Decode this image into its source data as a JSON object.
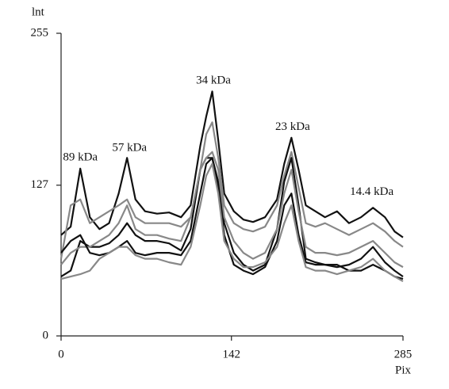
{
  "chart_data": {
    "type": "line",
    "x_label": "Pix",
    "y_label": "lnt",
    "x": [
      0,
      8,
      16,
      24,
      32,
      40,
      48,
      55,
      62,
      70,
      80,
      90,
      100,
      108,
      116,
      121,
      126,
      131,
      136,
      144,
      152,
      160,
      170,
      180,
      186,
      192,
      198,
      204,
      212,
      220,
      230,
      240,
      250,
      260,
      270,
      278,
      285
    ],
    "series": [
      {
        "color": "#111111",
        "values": [
          85,
          92,
          141,
          100,
          90,
          95,
          120,
          150,
          115,
          105,
          103,
          104,
          100,
          110,
          160,
          185,
          206,
          165,
          120,
          105,
          98,
          96,
          100,
          115,
          145,
          167,
          140,
          110,
          105,
          100,
          105,
          95,
          100,
          108,
          100,
          88,
          83
        ]
      },
      {
        "color": "#888888",
        "values": [
          65,
          110,
          115,
          95,
          100,
          105,
          110,
          115,
          100,
          95,
          95,
          95,
          92,
          100,
          140,
          170,
          180,
          150,
          110,
          95,
          90,
          88,
          92,
          110,
          135,
          155,
          125,
          95,
          92,
          95,
          90,
          85,
          90,
          95,
          88,
          80,
          75
        ]
      },
      {
        "color": "#111111",
        "values": [
          50,
          55,
          80,
          75,
          75,
          78,
          85,
          95,
          85,
          80,
          80,
          78,
          72,
          90,
          140,
          150,
          150,
          130,
          95,
          70,
          60,
          55,
          60,
          90,
          130,
          150,
          110,
          65,
          62,
          60,
          60,
          55,
          55,
          60,
          55,
          50,
          48
        ]
      },
      {
        "color": "#888888",
        "values": [
          60,
          70,
          75,
          75,
          80,
          85,
          95,
          110,
          90,
          85,
          85,
          82,
          80,
          100,
          140,
          150,
          155,
          140,
          100,
          80,
          70,
          65,
          70,
          90,
          120,
          140,
          105,
          75,
          70,
          70,
          68,
          70,
          75,
          80,
          70,
          62,
          58
        ]
      },
      {
        "color": "#111111",
        "values": [
          70,
          80,
          85,
          70,
          68,
          70,
          75,
          80,
          70,
          68,
          70,
          70,
          68,
          80,
          120,
          145,
          150,
          125,
          85,
          60,
          55,
          52,
          58,
          80,
          110,
          120,
          85,
          62,
          60,
          60,
          58,
          60,
          65,
          75,
          62,
          55,
          50
        ]
      },
      {
        "color": "#888888",
        "values": [
          48,
          50,
          52,
          55,
          65,
          70,
          75,
          75,
          68,
          65,
          65,
          62,
          60,
          75,
          110,
          135,
          145,
          120,
          80,
          65,
          58,
          58,
          62,
          75,
          95,
          110,
          80,
          58,
          55,
          55,
          52,
          55,
          58,
          65,
          55,
          50,
          46
        ]
      }
    ],
    "annotations": [
      {
        "text": "89 kDa",
        "x": 16,
        "y": 150
      },
      {
        "text": "57 kDa",
        "x": 57,
        "y": 158
      },
      {
        "text": "34 kDa",
        "x": 127,
        "y": 215
      },
      {
        "text": "23 kDa",
        "x": 193,
        "y": 176
      },
      {
        "text": "14.4 kDa",
        "x": 259,
        "y": 121
      }
    ],
    "xlim": [
      0,
      285
    ],
    "xticks": [
      0,
      142,
      285
    ],
    "ylim": [
      0,
      255
    ],
    "yticks": [
      0,
      127,
      255
    ]
  }
}
